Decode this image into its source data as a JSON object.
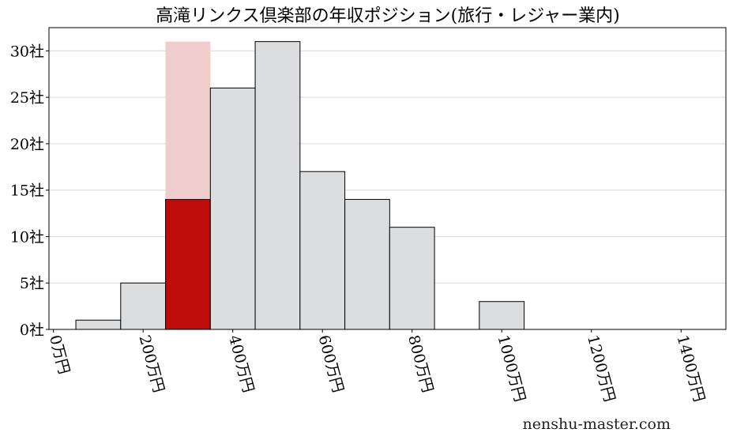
{
  "chart_data": {
    "type": "bar",
    "title": "高滝リンクス倶楽部の年収ポジション(旅行・レジャー業内)",
    "bins": [
      {
        "range": [
          50,
          150
        ],
        "value": 1
      },
      {
        "range": [
          150,
          250
        ],
        "value": 5
      },
      {
        "range": [
          250,
          350
        ],
        "value": 14,
        "highlight": true
      },
      {
        "range": [
          350,
          450
        ],
        "value": 26
      },
      {
        "range": [
          450,
          550
        ],
        "value": 31
      },
      {
        "range": [
          550,
          650
        ],
        "value": 17
      },
      {
        "range": [
          650,
          750
        ],
        "value": 14
      },
      {
        "range": [
          750,
          850
        ],
        "value": 11
      },
      {
        "range": [
          850,
          950
        ],
        "value": 0
      },
      {
        "range": [
          950,
          1050
        ],
        "value": 3
      },
      {
        "range": [
          1050,
          1150
        ],
        "value": 0
      },
      {
        "range": [
          1150,
          1250
        ],
        "value": 0
      },
      {
        "range": [
          1250,
          1350
        ],
        "value": 0
      },
      {
        "range": [
          1350,
          1450
        ],
        "value": 0
      },
      {
        "range": [
          1450,
          1550
        ],
        "value": 0
      }
    ],
    "highlight_band": {
      "range": [
        250,
        350
      ],
      "top": 31
    },
    "xlim": [
      -10,
      1500
    ],
    "ylim": [
      0,
      32.5
    ],
    "xticks": [
      0,
      200,
      400,
      600,
      800,
      1000,
      1200,
      1400
    ],
    "xtick_labels": [
      "0万円",
      "200万円",
      "400万円",
      "600万円",
      "800万円",
      "1000万円",
      "1200万円",
      "1400万円"
    ],
    "yticks": [
      0,
      5,
      10,
      15,
      20,
      25,
      30
    ],
    "ytick_labels": [
      "0社",
      "5社",
      "10社",
      "15社",
      "20社",
      "25社",
      "30社"
    ],
    "grid": true,
    "colors": {
      "bar": "#dcdddf",
      "highlight_bar": "#c00b0b",
      "highlight_band": "#f0cdcd",
      "grid": "#d9d9d9",
      "edge": "#000000"
    }
  },
  "watermark": "nenshu-master.com"
}
